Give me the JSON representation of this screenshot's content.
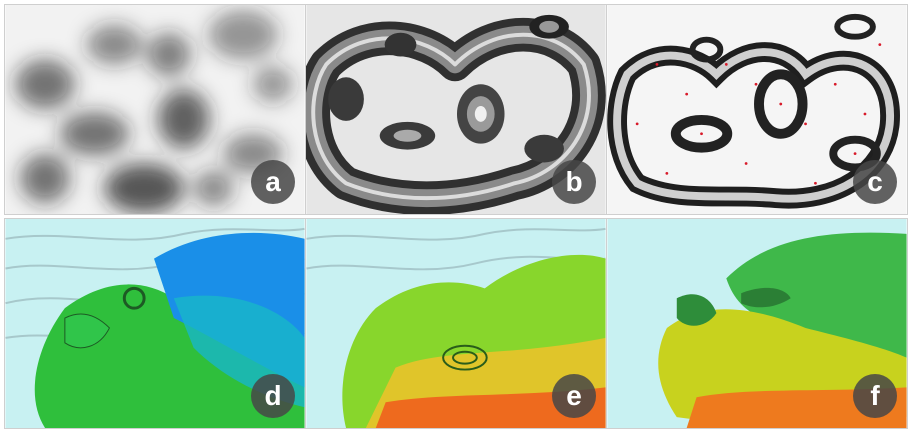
{
  "figure": {
    "panels": [
      {
        "label": "a",
        "style": "gaussian-blur-grayscale"
      },
      {
        "label": "b",
        "style": "contour-relief-dark"
      },
      {
        "label": "c",
        "style": "contour-relief-light-with-points"
      },
      {
        "label": "d",
        "style": "europe-map-contours-green-blue"
      },
      {
        "label": "e",
        "style": "europe-map-contours-green-orange"
      },
      {
        "label": "f",
        "style": "europe-map-3d-relief"
      }
    ],
    "colors": {
      "sea": "#c8f1f2",
      "land_green": "#36d04a",
      "land_yellow": "#cfd825",
      "land_orange": "#ee7a1e",
      "land_red": "#e84a1a",
      "blue": "#1a8fe8",
      "point": "#d81a2a"
    }
  }
}
